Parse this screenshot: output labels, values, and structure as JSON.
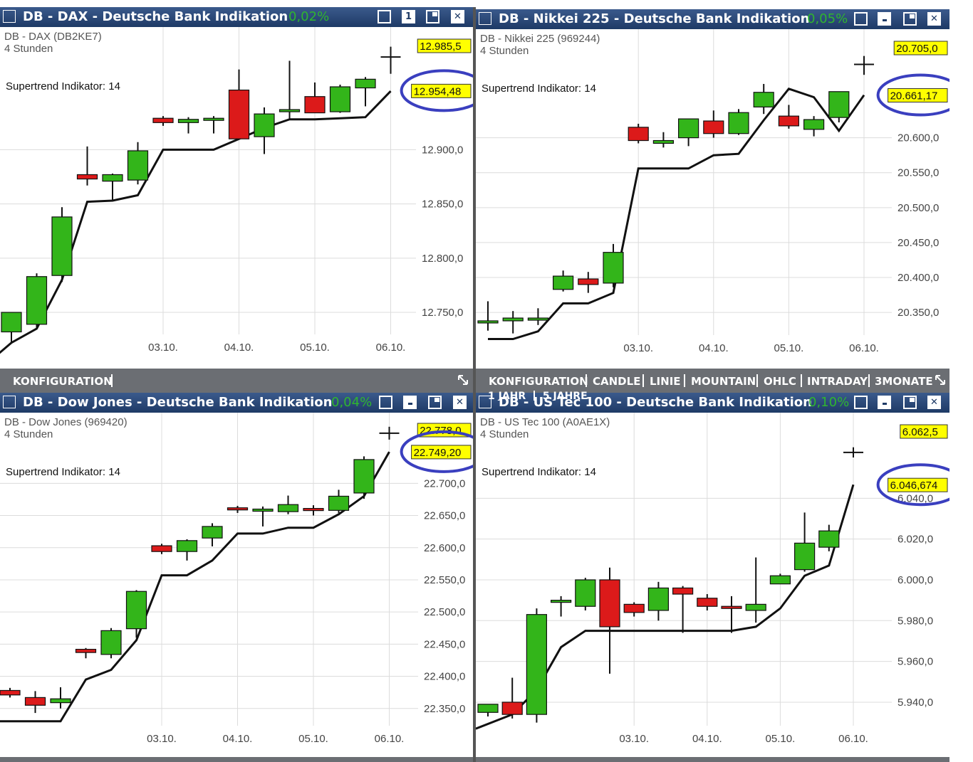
{
  "colors": {
    "titlebar_bg": "#1e3a66",
    "up_candle": "#33b51a",
    "down_candle": "#dc1a1a",
    "trend_line": "#111111",
    "price_box": "#ffff00",
    "highlight_circle": "#3a3fbf",
    "toolbar_bg": "#6b6e73",
    "change_pct": "#2fb52f"
  },
  "toolbar_left": {
    "label": "KONFIGURATION"
  },
  "toolbar_right": {
    "items": [
      "KONFIGURATION",
      "CANDLE",
      "LINIE",
      "MOUNTAIN",
      "OHLC",
      "INTRADAY",
      "3MONATE"
    ],
    "overflow_items": [
      "1 JAHR",
      "5 JAHRE"
    ]
  },
  "chart_data": [
    {
      "type": "candlestick",
      "window_title": "DB - DAX - Deutsche Bank Indikation",
      "change": "0,02%",
      "subtitle": "DB - DAX (DB2KE7)",
      "interval": "4 Stunden",
      "indicator": "Supertrend Indikator: 14",
      "ylim": [
        12710,
        13000
      ],
      "yticks": [
        12750,
        12800,
        12850,
        12900
      ],
      "ytick_labels": [
        "12.750,0",
        "12.800,0",
        "12.850,0",
        "12.900,0"
      ],
      "x_labels": [
        {
          "i": 6,
          "label": "03.10."
        },
        {
          "i": 9,
          "label": "04.10."
        },
        {
          "i": 12,
          "label": "05.10."
        },
        {
          "i": 15,
          "label": "06.10."
        }
      ],
      "price_labels": [
        {
          "value": 12985.5,
          "text": "12.985,5"
        },
        {
          "value": 12954.48,
          "text": "12.954,48",
          "circled": true
        }
      ],
      "candles": [
        {
          "o": 12732,
          "h": 12750,
          "l": 12722,
          "c": 12750
        },
        {
          "o": 12739,
          "h": 12786,
          "l": 12735,
          "c": 12783
        },
        {
          "o": 12784,
          "h": 12847,
          "l": 12778,
          "c": 12838
        },
        {
          "o": 12877,
          "h": 12903,
          "l": 12867,
          "c": 12873
        },
        {
          "o": 12871,
          "h": 12878,
          "l": 12853,
          "c": 12877
        },
        {
          "o": 12872,
          "h": 12907,
          "l": 12868,
          "c": 12899
        },
        {
          "o": 12929,
          "h": 12931,
          "l": 12922,
          "c": 12925
        },
        {
          "o": 12925,
          "h": 12930,
          "l": 12915,
          "c": 12928
        },
        {
          "o": 12929,
          "h": 12931,
          "l": 12915,
          "c": 12929
        },
        {
          "o": 12955,
          "h": 12974,
          "l": 12910,
          "c": 12910
        },
        {
          "o": 12912,
          "h": 12939,
          "l": 12896,
          "c": 12933
        },
        {
          "o": 12935,
          "h": 12982,
          "l": 12928,
          "c": 12937
        },
        {
          "o": 12949,
          "h": 12962,
          "l": 12934,
          "c": 12934
        },
        {
          "o": 12935,
          "h": 12960,
          "l": 12934,
          "c": 12958
        },
        {
          "o": 12957,
          "h": 12967,
          "l": 12940,
          "c": 12965
        },
        {
          "o": 12985.5,
          "h": 12995,
          "l": 12970,
          "c": 12985.5
        }
      ],
      "supertrend": [
        [
          -0.5,
          12712
        ],
        [
          0,
          12722
        ],
        [
          1,
          12735
        ],
        [
          2,
          12780
        ],
        [
          3,
          12852
        ],
        [
          4,
          12853
        ],
        [
          5,
          12858
        ],
        [
          6,
          12900
        ],
        [
          7,
          12900
        ],
        [
          8,
          12900
        ],
        [
          9,
          12910
        ],
        [
          10,
          12920
        ],
        [
          11,
          12928
        ],
        [
          12,
          12928
        ],
        [
          13,
          12929
        ],
        [
          14,
          12930
        ],
        [
          15,
          12954
        ]
      ]
    },
    {
      "type": "candlestick",
      "window_title": "DB - Nikkei 225 - Deutsche Bank Indikation",
      "change": "0,05%",
      "subtitle": "DB - Nikkei 225 (969244)",
      "interval": "4 Stunden",
      "indicator": "Supertrend Indikator: 14",
      "ylim": [
        20285,
        20735
      ],
      "yticks": [
        20350,
        20400,
        20450,
        20500,
        20550,
        20600
      ],
      "ytick_labels": [
        "20.350,0",
        "20.400,0",
        "20.450,0",
        "20.500,0",
        "20.550,0",
        "20.600,0"
      ],
      "x_labels": [
        {
          "i": 6,
          "label": "03.10."
        },
        {
          "i": 9,
          "label": "04.10."
        },
        {
          "i": 12,
          "label": "05.10."
        },
        {
          "i": 15,
          "label": "06.10."
        }
      ],
      "price_labels": [
        {
          "value": 20705.0,
          "text": "20.705,0"
        },
        {
          "value": 20661.17,
          "text": "20.661,17",
          "circled": true
        }
      ],
      "candles": [
        {
          "o": 20336,
          "h": 20366,
          "l": 20324,
          "c": 20338
        },
        {
          "o": 20338,
          "h": 20352,
          "l": 20320,
          "c": 20342
        },
        {
          "o": 20342,
          "h": 20356,
          "l": 20332,
          "c": 20342
        },
        {
          "o": 20383,
          "h": 20410,
          "l": 20380,
          "c": 20402
        },
        {
          "o": 20398,
          "h": 20408,
          "l": 20378,
          "c": 20390
        },
        {
          "o": 20392,
          "h": 20448,
          "l": 20386,
          "c": 20436
        },
        {
          "o": 20615,
          "h": 20620,
          "l": 20592,
          "c": 20596
        },
        {
          "o": 20592,
          "h": 20608,
          "l": 20586,
          "c": 20596
        },
        {
          "o": 20600,
          "h": 20627,
          "l": 20588,
          "c": 20627
        },
        {
          "o": 20624,
          "h": 20639,
          "l": 20600,
          "c": 20606
        },
        {
          "o": 20606,
          "h": 20641,
          "l": 20604,
          "c": 20636
        },
        {
          "o": 20644,
          "h": 20677,
          "l": 20634,
          "c": 20665
        },
        {
          "o": 20631,
          "h": 20647,
          "l": 20613,
          "c": 20617
        },
        {
          "o": 20612,
          "h": 20631,
          "l": 20602,
          "c": 20626
        },
        {
          "o": 20629,
          "h": 20666,
          "l": 20622,
          "c": 20666
        },
        {
          "o": 20705,
          "h": 20717,
          "l": 20690,
          "c": 20705
        }
      ],
      "supertrend": [
        [
          0,
          20312
        ],
        [
          1,
          20312
        ],
        [
          2,
          20323
        ],
        [
          3,
          20363
        ],
        [
          4,
          20363
        ],
        [
          5,
          20378
        ],
        [
          6,
          20556
        ],
        [
          7,
          20556
        ],
        [
          8,
          20556
        ],
        [
          9,
          20575
        ],
        [
          10,
          20577
        ],
        [
          11,
          20625
        ],
        [
          12,
          20670
        ],
        [
          13,
          20658
        ],
        [
          14,
          20610
        ],
        [
          15,
          20661
        ]
      ]
    },
    {
      "type": "candlestick",
      "window_title": "DB - Dow Jones - Deutsche Bank Indikation",
      "change": "0,04%",
      "subtitle": "DB - Dow Jones (969420)",
      "interval": "4 Stunden",
      "indicator": "Supertrend Indikator: 14",
      "ylim": [
        22290,
        22790
      ],
      "yticks": [
        22350,
        22400,
        22450,
        22500,
        22550,
        22600,
        22650,
        22700
      ],
      "ytick_labels": [
        "22.350,0",
        "22.400,0",
        "22.450,0",
        "22.500,0",
        "22.550,0",
        "22.600,0",
        "22.650,0",
        "22.700,0"
      ],
      "x_labels": [
        {
          "i": 6,
          "label": "03.10."
        },
        {
          "i": 9,
          "label": "04.10."
        },
        {
          "i": 12,
          "label": "05.10."
        },
        {
          "i": 15,
          "label": "06.10."
        }
      ],
      "price_labels": [
        {
          "value": 22778.0,
          "text": "22.778,0"
        },
        {
          "value": 22749.2,
          "text": "22.749,20",
          "circled": true
        }
      ],
      "candles": [
        {
          "o": 22378,
          "h": 22382,
          "l": 22367,
          "c": 22371
        },
        {
          "o": 22367,
          "h": 22377,
          "l": 22343,
          "c": 22355
        },
        {
          "o": 22359,
          "h": 22383,
          "l": 22350,
          "c": 22365
        },
        {
          "o": 22442,
          "h": 22444,
          "l": 22428,
          "c": 22437
        },
        {
          "o": 22434,
          "h": 22475,
          "l": 22428,
          "c": 22471
        },
        {
          "o": 22474,
          "h": 22534,
          "l": 22460,
          "c": 22532
        },
        {
          "o": 22603,
          "h": 22606,
          "l": 22590,
          "c": 22594
        },
        {
          "o": 22594,
          "h": 22613,
          "l": 22580,
          "c": 22611
        },
        {
          "o": 22615,
          "h": 22638,
          "l": 22602,
          "c": 22633
        },
        {
          "o": 22662,
          "h": 22665,
          "l": 22654,
          "c": 22660
        },
        {
          "o": 22660,
          "h": 22664,
          "l": 22633,
          "c": 22660
        },
        {
          "o": 22656,
          "h": 22681,
          "l": 22652,
          "c": 22667
        },
        {
          "o": 22661,
          "h": 22666,
          "l": 22650,
          "c": 22658
        },
        {
          "o": 22658,
          "h": 22690,
          "l": 22654,
          "c": 22680
        },
        {
          "o": 22685,
          "h": 22742,
          "l": 22676,
          "c": 22737
        },
        {
          "o": 22778,
          "h": 22788,
          "l": 22768,
          "c": 22778
        }
      ],
      "supertrend": [
        [
          -0.5,
          22330
        ],
        [
          0,
          22330
        ],
        [
          1,
          22330
        ],
        [
          2,
          22330
        ],
        [
          3,
          22395
        ],
        [
          4,
          22410
        ],
        [
          5,
          22456
        ],
        [
          6,
          22557
        ],
        [
          7,
          22557
        ],
        [
          8,
          22580
        ],
        [
          9,
          22622
        ],
        [
          10,
          22622
        ],
        [
          11,
          22631
        ],
        [
          12,
          22631
        ],
        [
          13,
          22652
        ],
        [
          14,
          22680
        ],
        [
          15,
          22749
        ]
      ]
    },
    {
      "type": "candlestick",
      "window_title": "DB - US Tec 100 - Deutsche Bank Indikation",
      "change": "0,10%",
      "subtitle": "DB - US Tec 100 (A0AE1X)",
      "interval": "4 Stunden",
      "indicator": "Supertrend Indikator: 14",
      "ylim": [
        5918,
        6075
      ],
      "yticks": [
        5940,
        5960,
        5980,
        6000,
        6020,
        6040
      ],
      "ytick_labels": [
        "5.940,0",
        "5.960,0",
        "5.980,0",
        "6.000,0",
        "6.020,0",
        "6.040,0"
      ],
      "x_labels": [
        {
          "i": 6,
          "label": "03.10."
        },
        {
          "i": 9,
          "label": "04.10."
        },
        {
          "i": 12,
          "label": "05.10."
        },
        {
          "i": 15,
          "label": "06.10."
        }
      ],
      "price_labels": [
        {
          "value": 6062.5,
          "text": "6.062,5"
        },
        {
          "value": 6046.674,
          "text": "6.046,674",
          "circled": true
        }
      ],
      "candles": [
        {
          "o": 5935,
          "h": 5939,
          "l": 5933,
          "c": 5939
        },
        {
          "o": 5940,
          "h": 5952,
          "l": 5932,
          "c": 5934
        },
        {
          "o": 5934,
          "h": 5986,
          "l": 5930,
          "c": 5983
        },
        {
          "o": 5990,
          "h": 5992,
          "l": 5982,
          "c": 5990
        },
        {
          "o": 5987,
          "h": 6001,
          "l": 5985,
          "c": 6000
        },
        {
          "o": 6000,
          "h": 6006,
          "l": 5954,
          "c": 5977
        },
        {
          "o": 5988,
          "h": 5989,
          "l": 5982,
          "c": 5984
        },
        {
          "o": 5985,
          "h": 5999,
          "l": 5980,
          "c": 5996
        },
        {
          "o": 5996,
          "h": 5997,
          "l": 5974,
          "c": 5993
        },
        {
          "o": 5991,
          "h": 5993,
          "l": 5985,
          "c": 5987
        },
        {
          "o": 5987,
          "h": 5992,
          "l": 5974,
          "c": 5986
        },
        {
          "o": 5985,
          "h": 6011,
          "l": 5979,
          "c": 5988
        },
        {
          "o": 5998,
          "h": 6003,
          "l": 5998,
          "c": 6002
        },
        {
          "o": 6005,
          "h": 6033,
          "l": 6004,
          "c": 6018
        },
        {
          "o": 6016,
          "h": 6027,
          "l": 6014,
          "c": 6024
        },
        {
          "o": 6062.5,
          "h": 6065,
          "l": 6060,
          "c": 6062.5
        }
      ],
      "supertrend": [
        [
          -0.5,
          5927
        ],
        [
          1,
          5934
        ],
        [
          2,
          5946
        ],
        [
          3,
          5967
        ],
        [
          4,
          5975
        ],
        [
          5,
          5975
        ],
        [
          6,
          5975
        ],
        [
          7,
          5975
        ],
        [
          8,
          5975
        ],
        [
          9,
          5975
        ],
        [
          10,
          5975
        ],
        [
          11,
          5977
        ],
        [
          12,
          5986
        ],
        [
          13,
          6002
        ],
        [
          14,
          6007
        ],
        [
          15,
          6046.674
        ]
      ]
    }
  ]
}
